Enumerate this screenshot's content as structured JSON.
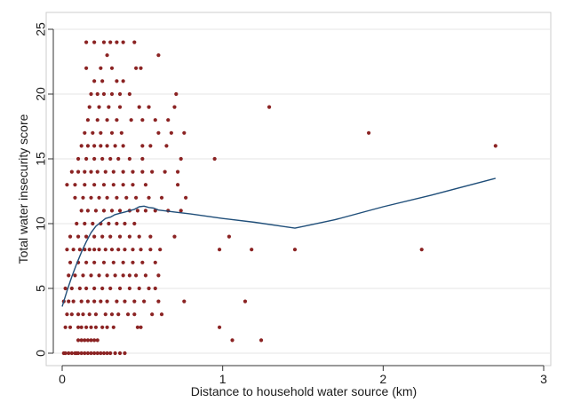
{
  "chart_data": {
    "type": "scatter",
    "title": "",
    "xlabel": "Distance to household water source (km)",
    "ylabel": "Total water insecurity score",
    "xlim": [
      0,
      3
    ],
    "ylim": [
      0,
      25
    ],
    "xticks": [
      "0",
      "1",
      "2",
      "3"
    ],
    "yticks": [
      "0",
      "5",
      "10",
      "15",
      "20",
      "25"
    ],
    "grid": "horizontal",
    "legend": "none",
    "colors": {
      "points": "#8b2323",
      "fit_line": "#1f4e79",
      "frame": "#cccccc",
      "axis": "#333333"
    },
    "series": [
      {
        "type": "scatter",
        "points": [
          [
            0.01,
            0
          ],
          [
            0.02,
            0
          ],
          [
            0.04,
            0
          ],
          [
            0.06,
            0
          ],
          [
            0.08,
            0
          ],
          [
            0.09,
            0
          ],
          [
            0.1,
            0
          ],
          [
            0.12,
            0
          ],
          [
            0.14,
            0
          ],
          [
            0.16,
            0
          ],
          [
            0.18,
            0
          ],
          [
            0.2,
            0
          ],
          [
            0.22,
            0
          ],
          [
            0.24,
            0
          ],
          [
            0.26,
            0
          ],
          [
            0.28,
            0
          ],
          [
            0.3,
            0
          ],
          [
            0.33,
            0
          ],
          [
            0.36,
            0
          ],
          [
            0.39,
            0
          ],
          [
            0.1,
            1
          ],
          [
            0.12,
            1
          ],
          [
            0.14,
            1
          ],
          [
            0.16,
            1
          ],
          [
            0.18,
            1
          ],
          [
            0.2,
            1
          ],
          [
            0.22,
            1
          ],
          [
            1.06,
            1
          ],
          [
            1.24,
            1
          ],
          [
            0.02,
            2
          ],
          [
            0.05,
            2
          ],
          [
            0.1,
            2
          ],
          [
            0.12,
            2
          ],
          [
            0.15,
            2
          ],
          [
            0.18,
            2
          ],
          [
            0.21,
            2
          ],
          [
            0.25,
            2
          ],
          [
            0.28,
            2
          ],
          [
            0.32,
            2
          ],
          [
            0.47,
            2
          ],
          [
            0.49,
            2
          ],
          [
            0.98,
            2
          ],
          [
            0.03,
            3
          ],
          [
            0.06,
            3
          ],
          [
            0.1,
            3
          ],
          [
            0.13,
            3
          ],
          [
            0.17,
            3
          ],
          [
            0.21,
            3
          ],
          [
            0.27,
            3
          ],
          [
            0.31,
            3
          ],
          [
            0.35,
            3
          ],
          [
            0.41,
            3
          ],
          [
            0.45,
            3
          ],
          [
            0.56,
            3
          ],
          [
            0.62,
            3
          ],
          [
            0.01,
            4
          ],
          [
            0.04,
            4
          ],
          [
            0.07,
            4
          ],
          [
            0.12,
            4
          ],
          [
            0.16,
            4
          ],
          [
            0.2,
            4
          ],
          [
            0.24,
            4
          ],
          [
            0.28,
            4
          ],
          [
            0.34,
            4
          ],
          [
            0.39,
            4
          ],
          [
            0.45,
            4
          ],
          [
            0.51,
            4
          ],
          [
            0.6,
            4
          ],
          [
            0.76,
            4
          ],
          [
            1.14,
            4
          ],
          [
            0.02,
            5
          ],
          [
            0.06,
            5
          ],
          [
            0.11,
            5
          ],
          [
            0.15,
            5
          ],
          [
            0.2,
            5
          ],
          [
            0.25,
            5
          ],
          [
            0.3,
            5
          ],
          [
            0.36,
            5
          ],
          [
            0.42,
            5
          ],
          [
            0.48,
            5
          ],
          [
            0.54,
            5
          ],
          [
            0.58,
            5
          ],
          [
            0.04,
            6
          ],
          [
            0.08,
            6
          ],
          [
            0.13,
            6
          ],
          [
            0.18,
            6
          ],
          [
            0.23,
            6
          ],
          [
            0.28,
            6
          ],
          [
            0.33,
            6
          ],
          [
            0.38,
            6
          ],
          [
            0.42,
            6
          ],
          [
            0.46,
            6
          ],
          [
            0.52,
            6
          ],
          [
            0.6,
            6
          ],
          [
            0.05,
            7
          ],
          [
            0.1,
            7
          ],
          [
            0.15,
            7
          ],
          [
            0.2,
            7
          ],
          [
            0.26,
            7
          ],
          [
            0.32,
            7
          ],
          [
            0.38,
            7
          ],
          [
            0.44,
            7
          ],
          [
            0.5,
            7
          ],
          [
            0.58,
            7
          ],
          [
            0.03,
            8
          ],
          [
            0.07,
            8
          ],
          [
            0.11,
            8
          ],
          [
            0.14,
            8
          ],
          [
            0.17,
            8
          ],
          [
            0.2,
            8
          ],
          [
            0.23,
            8
          ],
          [
            0.27,
            8
          ],
          [
            0.31,
            8
          ],
          [
            0.35,
            8
          ],
          [
            0.39,
            8
          ],
          [
            0.44,
            8
          ],
          [
            0.49,
            8
          ],
          [
            0.55,
            8
          ],
          [
            0.61,
            8
          ],
          [
            0.98,
            8
          ],
          [
            1.18,
            8
          ],
          [
            1.45,
            8
          ],
          [
            2.24,
            8
          ],
          [
            0.05,
            9
          ],
          [
            0.1,
            9
          ],
          [
            0.15,
            9
          ],
          [
            0.2,
            9
          ],
          [
            0.25,
            9
          ],
          [
            0.3,
            9
          ],
          [
            0.36,
            9
          ],
          [
            0.42,
            9
          ],
          [
            0.48,
            9
          ],
          [
            0.55,
            9
          ],
          [
            0.7,
            9
          ],
          [
            1.04,
            9
          ],
          [
            0.09,
            10
          ],
          [
            0.14,
            10
          ],
          [
            0.19,
            10
          ],
          [
            0.24,
            10
          ],
          [
            0.29,
            10
          ],
          [
            0.34,
            10
          ],
          [
            0.39,
            10
          ],
          [
            0.45,
            10
          ],
          [
            0.12,
            11
          ],
          [
            0.16,
            11
          ],
          [
            0.21,
            11
          ],
          [
            0.26,
            11
          ],
          [
            0.31,
            11
          ],
          [
            0.36,
            11
          ],
          [
            0.42,
            11
          ],
          [
            0.47,
            11
          ],
          [
            0.52,
            11
          ],
          [
            0.58,
            11
          ],
          [
            0.66,
            11
          ],
          [
            0.74,
            11
          ],
          [
            0.08,
            12
          ],
          [
            0.13,
            12
          ],
          [
            0.18,
            12
          ],
          [
            0.23,
            12
          ],
          [
            0.28,
            12
          ],
          [
            0.34,
            12
          ],
          [
            0.4,
            12
          ],
          [
            0.46,
            12
          ],
          [
            0.54,
            12
          ],
          [
            0.62,
            12
          ],
          [
            0.77,
            12
          ],
          [
            0.03,
            13
          ],
          [
            0.08,
            13
          ],
          [
            0.14,
            13
          ],
          [
            0.2,
            13
          ],
          [
            0.26,
            13
          ],
          [
            0.32,
            13
          ],
          [
            0.38,
            13
          ],
          [
            0.44,
            13
          ],
          [
            0.52,
            13
          ],
          [
            0.72,
            13
          ],
          [
            0.06,
            14
          ],
          [
            0.1,
            14
          ],
          [
            0.14,
            14
          ],
          [
            0.18,
            14
          ],
          [
            0.22,
            14
          ],
          [
            0.27,
            14
          ],
          [
            0.32,
            14
          ],
          [
            0.38,
            14
          ],
          [
            0.44,
            14
          ],
          [
            0.5,
            14
          ],
          [
            0.56,
            14
          ],
          [
            0.64,
            14
          ],
          [
            0.72,
            14
          ],
          [
            0.1,
            15
          ],
          [
            0.15,
            15
          ],
          [
            0.2,
            15
          ],
          [
            0.25,
            15
          ],
          [
            0.3,
            15
          ],
          [
            0.35,
            15
          ],
          [
            0.42,
            15
          ],
          [
            0.5,
            15
          ],
          [
            0.74,
            15
          ],
          [
            0.95,
            15
          ],
          [
            0.12,
            16
          ],
          [
            0.16,
            16
          ],
          [
            0.2,
            16
          ],
          [
            0.24,
            16
          ],
          [
            0.28,
            16
          ],
          [
            0.33,
            16
          ],
          [
            0.38,
            16
          ],
          [
            0.5,
            16
          ],
          [
            0.55,
            16
          ],
          [
            0.65,
            16
          ],
          [
            2.7,
            16
          ],
          [
            0.14,
            17
          ],
          [
            0.19,
            17
          ],
          [
            0.24,
            17
          ],
          [
            0.31,
            17
          ],
          [
            0.37,
            17
          ],
          [
            0.6,
            17
          ],
          [
            0.68,
            17
          ],
          [
            0.76,
            17
          ],
          [
            1.91,
            17
          ],
          [
            0.16,
            18
          ],
          [
            0.22,
            18
          ],
          [
            0.28,
            18
          ],
          [
            0.34,
            18
          ],
          [
            0.43,
            18
          ],
          [
            0.5,
            18
          ],
          [
            0.58,
            18
          ],
          [
            0.66,
            18
          ],
          [
            0.17,
            19
          ],
          [
            0.23,
            19
          ],
          [
            0.29,
            19
          ],
          [
            0.36,
            19
          ],
          [
            0.48,
            19
          ],
          [
            0.54,
            19
          ],
          [
            0.7,
            19
          ],
          [
            1.29,
            19
          ],
          [
            0.18,
            20
          ],
          [
            0.22,
            20
          ],
          [
            0.26,
            20
          ],
          [
            0.31,
            20
          ],
          [
            0.36,
            20
          ],
          [
            0.42,
            20
          ],
          [
            0.71,
            20
          ],
          [
            0.2,
            21
          ],
          [
            0.25,
            21
          ],
          [
            0.34,
            21
          ],
          [
            0.38,
            21
          ],
          [
            0.15,
            22
          ],
          [
            0.24,
            22
          ],
          [
            0.31,
            22
          ],
          [
            0.46,
            22
          ],
          [
            0.49,
            22
          ],
          [
            0.28,
            23
          ],
          [
            0.6,
            23
          ],
          [
            0.15,
            24
          ],
          [
            0.2,
            24
          ],
          [
            0.26,
            24
          ],
          [
            0.3,
            24
          ],
          [
            0.34,
            24
          ],
          [
            0.38,
            24
          ],
          [
            0.45,
            24
          ]
        ]
      },
      {
        "type": "line",
        "points": [
          [
            0.0,
            3.6
          ],
          [
            0.03,
            4.8
          ],
          [
            0.06,
            5.9
          ],
          [
            0.09,
            6.9
          ],
          [
            0.12,
            7.8
          ],
          [
            0.15,
            8.6
          ],
          [
            0.18,
            9.3
          ],
          [
            0.21,
            9.8
          ],
          [
            0.24,
            10.1
          ],
          [
            0.27,
            10.4
          ],
          [
            0.3,
            10.5
          ],
          [
            0.33,
            10.7
          ],
          [
            0.36,
            10.8
          ],
          [
            0.39,
            10.9
          ],
          [
            0.42,
            11.0
          ],
          [
            0.45,
            11.1
          ],
          [
            0.48,
            11.3
          ],
          [
            0.51,
            11.35
          ],
          [
            0.54,
            11.25
          ],
          [
            0.57,
            11.2
          ],
          [
            0.6,
            11.05
          ],
          [
            0.7,
            10.9
          ],
          [
            0.8,
            10.75
          ],
          [
            1.0,
            10.4
          ],
          [
            1.2,
            10.1
          ],
          [
            1.45,
            9.65
          ],
          [
            1.7,
            10.3
          ],
          [
            2.0,
            11.3
          ],
          [
            2.3,
            12.2
          ],
          [
            2.7,
            13.5
          ]
        ]
      }
    ]
  }
}
